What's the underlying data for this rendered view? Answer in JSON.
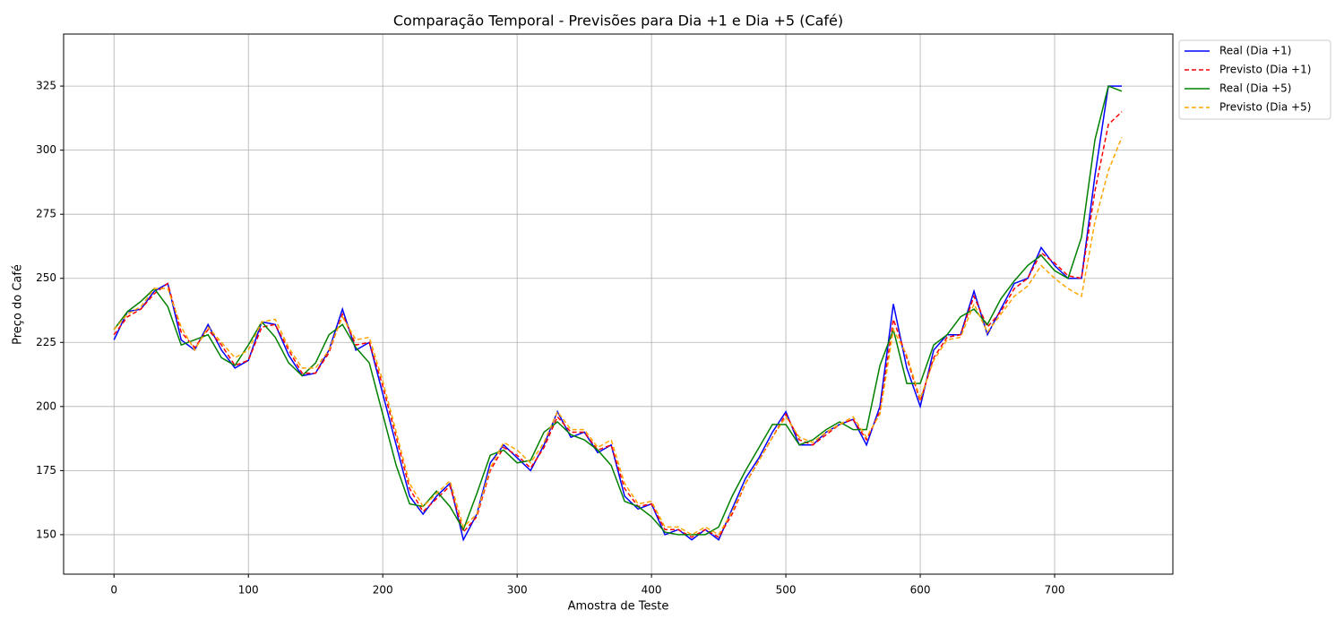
{
  "chart_data": {
    "type": "line",
    "title": "Comparação Temporal - Previsões para Dia +1 e Dia +5 (Café)",
    "xlabel": "Amostra de Teste",
    "ylabel": "Preço do Café",
    "x": [
      0,
      10,
      20,
      30,
      40,
      50,
      60,
      70,
      80,
      90,
      100,
      110,
      120,
      130,
      140,
      150,
      160,
      170,
      180,
      190,
      200,
      210,
      220,
      230,
      240,
      250,
      260,
      270,
      280,
      290,
      300,
      310,
      320,
      330,
      340,
      350,
      360,
      370,
      380,
      390,
      400,
      410,
      420,
      430,
      440,
      450,
      460,
      470,
      480,
      490,
      500,
      510,
      520,
      530,
      540,
      550,
      560,
      570,
      580,
      590,
      600,
      610,
      620,
      630,
      640,
      650,
      660,
      670,
      680,
      690,
      700,
      710,
      720,
      730,
      740,
      750
    ],
    "series": [
      {
        "name": "Real (Dia +1)",
        "color": "#0000ff",
        "linestyle": "solid",
        "values": [
          226,
          237,
          238,
          245,
          248,
          226,
          222,
          232,
          222,
          215,
          218,
          233,
          232,
          220,
          212,
          213,
          222,
          238,
          222,
          225,
          205,
          185,
          165,
          158,
          165,
          170,
          148,
          158,
          178,
          185,
          180,
          175,
          185,
          198,
          188,
          190,
          182,
          185,
          165,
          160,
          162,
          150,
          152,
          148,
          152,
          148,
          160,
          172,
          180,
          190,
          198,
          185,
          185,
          190,
          193,
          195,
          185,
          200,
          240,
          215,
          200,
          222,
          228,
          228,
          245,
          228,
          238,
          248,
          250,
          262,
          255,
          250,
          250,
          290,
          325,
          325
        ]
      },
      {
        "name": "Previsto (Dia +1)",
        "color": "#ff0000",
        "linestyle": "dashed",
        "values": [
          228,
          235,
          238,
          244,
          248,
          229,
          223,
          230,
          224,
          216,
          218,
          231,
          232,
          222,
          213,
          213,
          221,
          236,
          224,
          225,
          208,
          188,
          168,
          159,
          164,
          169,
          151,
          157,
          175,
          184,
          181,
          176,
          184,
          196,
          190,
          190,
          183,
          185,
          168,
          161,
          162,
          152,
          152,
          149,
          152,
          149,
          158,
          170,
          179,
          188,
          197,
          187,
          185,
          189,
          193,
          195,
          187,
          198,
          234,
          219,
          202,
          219,
          227,
          228,
          243,
          231,
          237,
          246,
          250,
          260,
          256,
          251,
          250,
          284,
          310,
          315
        ]
      },
      {
        "name": "Real (Dia +5)",
        "color": "#008000",
        "linestyle": "solid",
        "values": [
          230,
          237,
          241,
          246,
          239,
          224,
          226,
          228,
          219,
          216,
          224,
          233,
          227,
          217,
          212,
          217,
          228,
          232,
          223,
          217,
          197,
          177,
          162,
          161,
          167,
          161,
          152,
          166,
          181,
          183,
          178,
          179,
          190,
          194,
          189,
          187,
          183,
          177,
          163,
          161,
          157,
          151,
          150,
          150,
          150,
          153,
          165,
          175,
          184,
          193,
          193,
          185,
          187,
          191,
          194,
          191,
          191,
          216,
          230,
          209,
          209,
          224,
          228,
          235,
          238,
          232,
          242,
          249,
          255,
          259,
          253,
          250,
          266,
          304,
          325,
          323
        ]
      },
      {
        "name": "Previsto (Dia +5)",
        "color": "#ffa500",
        "linestyle": "dashed",
        "values": [
          230,
          236,
          239,
          246,
          246,
          231,
          222,
          231,
          225,
          219,
          222,
          233,
          234,
          223,
          215,
          215,
          222,
          235,
          226,
          227,
          210,
          190,
          170,
          161,
          166,
          171,
          153,
          158,
          176,
          186,
          183,
          178,
          186,
          198,
          191,
          191,
          184,
          187,
          170,
          162,
          163,
          153,
          153,
          150,
          153,
          150,
          159,
          170,
          179,
          188,
          196,
          188,
          186,
          190,
          193,
          196,
          188,
          197,
          230,
          220,
          203,
          218,
          226,
          227,
          240,
          229,
          236,
          243,
          247,
          255,
          250,
          246,
          243,
          272,
          292,
          305
        ]
      }
    ],
    "xlim": [
      -37.5,
      788
    ],
    "ylim": [
      134.6,
      345.3
    ],
    "xticks": [
      0,
      100,
      200,
      300,
      400,
      500,
      600,
      700
    ],
    "yticks": [
      150,
      175,
      200,
      225,
      250,
      275,
      300,
      325
    ],
    "grid": true,
    "legend": "outside-right"
  }
}
